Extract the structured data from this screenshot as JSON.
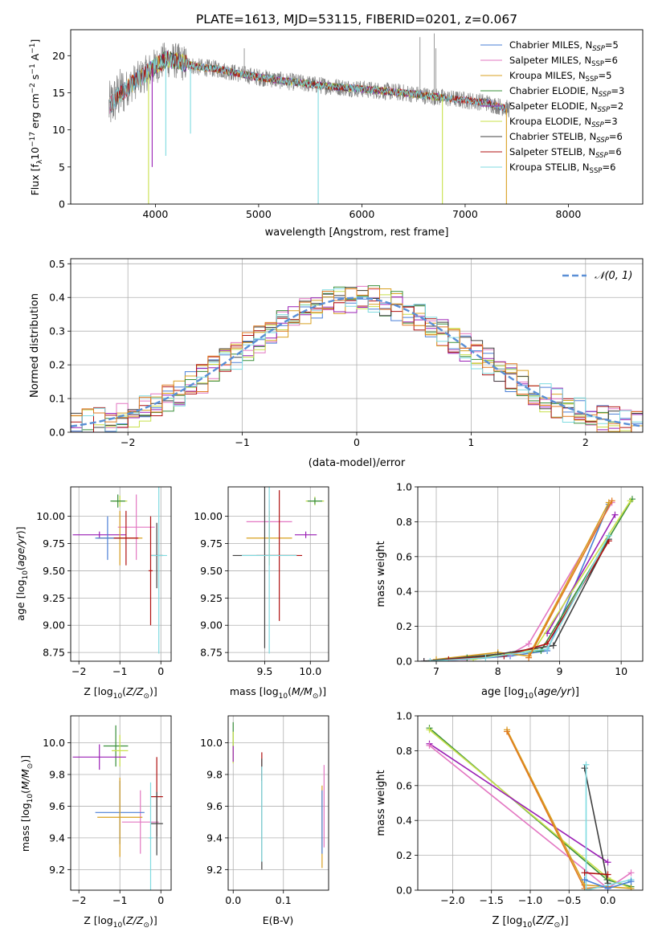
{
  "figure": {
    "title": "PLATE=1613, MJD=53115, FIBERID=0201, z=0.067"
  },
  "colors": {
    "Chabrier MILES": "#4a7fd6",
    "Salpeter MILES": "#e377c2",
    "Kroupa MILES": "#d8a020",
    "Chabrier ELODIE": "#3a8f3a",
    "Salpeter ELODIE": "#9a1fb5",
    "Kroupa ELODIE": "#c8e04a",
    "Chabrier STELIB": "#404040",
    "Salpeter STELIB": "#b01010",
    "Kroupa STELIB": "#7fdbe0",
    "orange": "#e07a20",
    "data": "#808080",
    "normal": "#5a8fd6"
  },
  "chart_data": [
    {
      "id": "spectrum",
      "type": "line",
      "title": "PLATE=1613, MJD=53115, FIBERID=0201, z=0.067",
      "xlabel": "wavelength [Angstrom, rest frame]",
      "ylabel": "Flux [f_λ 10^-17 erg cm^-2 s^-1 A^-1]",
      "xlim": [
        3180,
        8720
      ],
      "ylim": [
        0,
        23.5
      ],
      "xticks": [
        4000,
        5000,
        6000,
        7000,
        8000
      ],
      "yticks": [
        0,
        5,
        10,
        15,
        20
      ],
      "legend_position": "top-right",
      "grid": false,
      "legend": [
        {
          "name": "Chabrier MILES",
          "label": "Chabrier MILES, N_SSP=5"
        },
        {
          "name": "Salpeter MILES",
          "label": "Salpeter MILES, N_SSP=6"
        },
        {
          "name": "Kroupa MILES",
          "label": "Kroupa MILES, N_SSP=5"
        },
        {
          "name": "Chabrier ELODIE",
          "label": "Chabrier ELODIE, N_SSP=3"
        },
        {
          "name": "Salpeter ELODIE",
          "label": "Salpeter ELODIE, N_SSP=2"
        },
        {
          "name": "Kroupa ELODIE",
          "label": "Kroupa ELODIE, N_SSP=3"
        },
        {
          "name": "Chabrier STELIB",
          "label": "Chabrier STELIB, N_SSP=6"
        },
        {
          "name": "Salpeter STELIB",
          "label": "Salpeter STELIB, N_SSP=6"
        },
        {
          "name": "Kroupa STELIB",
          "label": "Kroupa STELIB, N_SSP=6"
        }
      ],
      "continuum_x": [
        3550,
        3650,
        3800,
        3900,
        4000,
        4100,
        4200,
        4400,
        4600,
        4800,
        5000,
        5300,
        5600,
        6000,
        6400,
        6800,
        7200,
        7500,
        7700,
        8000,
        8300,
        8720
      ],
      "continuum_y": [
        13.0,
        14.8,
        16.5,
        17.5,
        18.6,
        19.5,
        19.3,
        18.5,
        18.2,
        17.6,
        17.1,
        16.5,
        16.0,
        15.5,
        15.0,
        14.3,
        13.7,
        12.5,
        11.5,
        11.4,
        11.3,
        11.2
      ],
      "spikes": [
        {
          "x": 3934,
          "y": 0,
          "series": "Kroupa ELODIE"
        },
        {
          "x": 3969,
          "y": 5,
          "series": "Salpeter ELODIE"
        },
        {
          "x": 4101,
          "y": 6.5,
          "series": "Kroupa STELIB"
        },
        {
          "x": 4340,
          "y": 9.5,
          "series": "Kroupa STELIB"
        },
        {
          "x": 5577,
          "y": 0,
          "series": "Kroupa STELIB"
        },
        {
          "x": 6780,
          "y": 0,
          "series": "Kroupa ELODIE"
        },
        {
          "x": 7400,
          "y": 0,
          "series": "Kroupa MILES"
        }
      ]
    },
    {
      "id": "residuals",
      "type": "step",
      "xlabel": "(data-model)/error",
      "ylabel": "Normed distribution",
      "xlim": [
        -2.5,
        2.5
      ],
      "ylim": [
        0,
        0.515
      ],
      "xticks": [
        -2,
        -1,
        0,
        1,
        2
      ],
      "yticks": [
        0.0,
        0.1,
        0.2,
        0.3,
        0.4,
        0.5
      ],
      "grid": true,
      "legend": [
        {
          "label": "𝒩(0, 1)"
        }
      ],
      "bin_width": 0.1
    },
    {
      "id": "age_vs_Z",
      "type": "errorbar",
      "xlabel": "Z [log10(Z/Z⊙)]",
      "ylabel": "age  [log10(age/yr)]",
      "xlim": [
        -2.2,
        0.25
      ],
      "ylim": [
        8.67,
        10.27
      ],
      "xticks": [
        -2,
        -1,
        0
      ],
      "yticks": [
        8.75,
        9.0,
        9.25,
        9.5,
        9.75,
        10.0
      ],
      "grid": true,
      "points": [
        {
          "series": "Kroupa ELODIE",
          "x": -1.0,
          "y": 10.14,
          "dx": 0.18,
          "dy": 0.05
        },
        {
          "series": "Chabrier ELODIE",
          "x": -1.05,
          "y": 10.14,
          "dx": 0.18,
          "dy": 0.06
        },
        {
          "series": "Salpeter ELODIE",
          "x": -1.5,
          "y": 9.83,
          "dx": 0.65,
          "dy": 0.03
        },
        {
          "series": "Salpeter MILES",
          "x": -0.6,
          "y": 9.9,
          "dx": 0.45,
          "dy": 0.3
        },
        {
          "series": "Kroupa MILES",
          "x": -1.0,
          "y": 9.8,
          "dx": 0.55,
          "dy": 0.25
        },
        {
          "series": "Chabrier MILES",
          "x": -1.3,
          "y": 9.8,
          "dx": 0.3,
          "dy": 0.2
        },
        {
          "series": "Salpeter STELIB",
          "x": -0.85,
          "y": 9.8,
          "dx": 0.3,
          "dy": 0.25
        },
        {
          "series": "Chabrier STELIB",
          "x": -0.1,
          "y": 9.64,
          "dx": 0.15,
          "dy": 0.3
        },
        {
          "series": "Kroupa STELIB",
          "x": -0.05,
          "y": 9.64,
          "dx": 0.2,
          "dy": 0.9
        },
        {
          "series": "Salpeter STELIB",
          "x": -0.25,
          "y": 9.5,
          "dx": 0.05,
          "dy": 0.5
        }
      ]
    },
    {
      "id": "age_vs_mass",
      "type": "errorbar",
      "xlabel": "mass [log10(M/M⊙)]",
      "ylabel": "",
      "xlim": [
        9.1,
        10.2
      ],
      "ylim": [
        8.67,
        10.27
      ],
      "xticks": [
        9.5,
        10.0
      ],
      "yticks": [
        8.75,
        9.0,
        9.25,
        9.5,
        9.75,
        10.0
      ],
      "grid": true,
      "points": [
        {
          "series": "Kroupa ELODIE",
          "x": 10.05,
          "y": 10.14,
          "dx": 0.1,
          "dy": 0.04
        },
        {
          "series": "Chabrier ELODIE",
          "x": 10.05,
          "y": 10.14,
          "dx": 0.08,
          "dy": 0.03
        },
        {
          "series": "Salpeter MILES",
          "x": 9.55,
          "y": 9.95,
          "dx": 0.25,
          "dy": 0.2
        },
        {
          "series": "Salpeter ELODIE",
          "x": 9.95,
          "y": 9.83,
          "dx": 0.12,
          "dy": 0.03
        },
        {
          "series": "Kroupa MILES",
          "x": 9.55,
          "y": 9.8,
          "dx": 0.25,
          "dy": 0.25
        },
        {
          "series": "Chabrier STELIB",
          "x": 9.5,
          "y": 9.64,
          "dx": 0.35,
          "dy": 0.85
        },
        {
          "series": "Salpeter STELIB",
          "x": 9.66,
          "y": 9.64,
          "dx": 0.25,
          "dy": 0.6
        },
        {
          "series": "Kroupa STELIB",
          "x": 9.55,
          "y": 9.64,
          "dx": 0.3,
          "dy": 0.9
        }
      ]
    },
    {
      "id": "mass_weight_vs_age",
      "type": "line",
      "xlabel": "age  [log10(age/yr)]",
      "ylabel": "mass weight",
      "xlim": [
        6.7,
        10.35
      ],
      "ylim": [
        0,
        1.0
      ],
      "xticks": [
        7,
        8,
        9,
        10
      ],
      "yticks": [
        0.0,
        0.2,
        0.4,
        0.6,
        0.8,
        1.0
      ],
      "grid": true,
      "series": [
        {
          "name": "Chabrier MILES",
          "x": [
            6.8,
            7.5,
            8.2,
            8.8,
            9.8
          ],
          "y": [
            0.0,
            0.01,
            0.03,
            0.06,
            0.9
          ]
        },
        {
          "name": "Salpeter MILES",
          "x": [
            6.8,
            7.5,
            8.2,
            8.5,
            9.85
          ],
          "y": [
            0.0,
            0.01,
            0.04,
            0.1,
            0.91
          ]
        },
        {
          "name": "Kroupa MILES",
          "x": [
            7.0,
            8.0,
            8.5,
            9.8
          ],
          "y": [
            0.01,
            0.05,
            0.03,
            0.91
          ]
        },
        {
          "name": "Chabrier ELODIE",
          "x": [
            7.5,
            8.7,
            10.18
          ],
          "y": [
            0.02,
            0.06,
            0.93
          ]
        },
        {
          "name": "Salpeter ELODIE",
          "x": [
            8.8,
            9.9
          ],
          "y": [
            0.16,
            0.84
          ]
        },
        {
          "name": "Kroupa ELODIE",
          "x": [
            7.6,
            8.6,
            10.15
          ],
          "y": [
            0.01,
            0.07,
            0.92
          ]
        },
        {
          "name": "Chabrier STELIB",
          "x": [
            6.8,
            8.0,
            8.9,
            9.8
          ],
          "y": [
            0.0,
            0.04,
            0.09,
            0.7
          ]
        },
        {
          "name": "Salpeter STELIB",
          "x": [
            7.2,
            8.1,
            8.8,
            9.8
          ],
          "y": [
            0.01,
            0.03,
            0.1,
            0.69
          ]
        },
        {
          "name": "Kroupa STELIB",
          "x": [
            6.9,
            7.8,
            8.8,
            9.8
          ],
          "y": [
            0.0,
            0.02,
            0.07,
            0.72
          ]
        },
        {
          "name": "orange",
          "x": [
            8.5,
            9.85
          ],
          "y": [
            0.02,
            0.92
          ]
        }
      ]
    },
    {
      "id": "mass_vs_Z",
      "type": "errorbar",
      "xlabel": "Z [log10(Z/Z⊙)]",
      "ylabel": "mass [log10(M/M⊙)]",
      "xlim": [
        -2.2,
        0.25
      ],
      "ylim": [
        9.07,
        10.17
      ],
      "xticks": [
        -2,
        -1,
        0
      ],
      "yticks": [
        9.2,
        9.4,
        9.6,
        9.8,
        10.0
      ],
      "grid": true,
      "points": [
        {
          "series": "Chabrier ELODIE",
          "x": -1.1,
          "y": 9.98,
          "dx": 0.3,
          "dy": 0.13
        },
        {
          "series": "Kroupa ELODIE",
          "x": -1.0,
          "y": 9.95,
          "dx": 0.2,
          "dy": 0.1
        },
        {
          "series": "Salpeter ELODIE",
          "x": -1.5,
          "y": 9.91,
          "dx": 0.65,
          "dy": 0.08
        },
        {
          "series": "Salpeter MILES",
          "x": -0.5,
          "y": 9.5,
          "dx": 0.45,
          "dy": 0.2
        },
        {
          "series": "Chabrier MILES",
          "x": -1.0,
          "y": 9.56,
          "dx": 0.6,
          "dy": 0.2
        },
        {
          "series": "Kroupa MILES",
          "x": -1.0,
          "y": 9.53,
          "dx": 0.55,
          "dy": 0.25
        },
        {
          "series": "Salpeter STELIB",
          "x": -0.1,
          "y": 9.66,
          "dx": 0.15,
          "dy": 0.25
        },
        {
          "series": "Chabrier STELIB",
          "x": -0.1,
          "y": 9.49,
          "dx": 0.15,
          "dy": 0.2
        },
        {
          "series": "Kroupa STELIB",
          "x": -0.25,
          "y": 9.4,
          "dx": 0.05,
          "dy": 0.35
        }
      ]
    },
    {
      "id": "mass_vs_EBV",
      "type": "errorbar",
      "xlabel": "E(B-V)",
      "ylabel": "",
      "xlim": [
        -0.01,
        0.19
      ],
      "ylim": [
        9.07,
        10.17
      ],
      "xticks": [
        0.0,
        0.1
      ],
      "yticks": [
        9.2,
        9.4,
        9.6,
        9.8,
        10.0
      ],
      "grid": true,
      "points": [
        {
          "series": "Chabrier ELODIE",
          "x": 0.0,
          "y": 10.05,
          "dx": 0,
          "dy": 0.08
        },
        {
          "series": "Kroupa ELODIE",
          "x": 0.0,
          "y": 9.97,
          "dx": 0,
          "dy": 0.1
        },
        {
          "series": "Salpeter ELODIE",
          "x": 0.0,
          "y": 9.93,
          "dx": 0,
          "dy": 0.05
        },
        {
          "series": "Salpeter STELIB",
          "x": 0.057,
          "y": 9.85,
          "dx": 0,
          "dy": 0.09
        },
        {
          "series": "Chabrier STELIB",
          "x": 0.057,
          "y": 9.55,
          "dx": 0,
          "dy": 0.35
        },
        {
          "series": "Kroupa STELIB",
          "x": 0.057,
          "y": 9.55,
          "dx": 0,
          "dy": 0.3
        },
        {
          "series": "Salpeter MILES",
          "x": 0.181,
          "y": 9.6,
          "dx": 0,
          "dy": 0.26
        },
        {
          "series": "Kroupa MILES",
          "x": 0.177,
          "y": 9.47,
          "dx": 0,
          "dy": 0.26
        },
        {
          "series": "Chabrier MILES",
          "x": 0.177,
          "y": 9.5,
          "dx": 0,
          "dy": 0.2
        }
      ]
    },
    {
      "id": "mass_weight_vs_Z",
      "type": "line",
      "xlabel": "Z [log10(Z/Z⊙)]",
      "ylabel": "mass weight",
      "xlim": [
        -2.45,
        0.45
      ],
      "ylim": [
        0,
        1.0
      ],
      "xticks": [
        -2.0,
        -1.5,
        -1.0,
        -0.5,
        0.0
      ],
      "yticks": [
        0.0,
        0.2,
        0.4,
        0.6,
        0.8,
        1.0
      ],
      "grid": true,
      "series": [
        {
          "name": "Chabrier ELODIE",
          "x": [
            -2.3,
            -0.01,
            0.3
          ],
          "y": [
            0.93,
            0.06,
            0.02
          ]
        },
        {
          "name": "Kroupa ELODIE",
          "x": [
            -2.3,
            0.0,
            0.3
          ],
          "y": [
            0.92,
            0.07,
            0.01
          ]
        },
        {
          "name": "Salpeter ELODIE",
          "x": [
            -2.3,
            0.0
          ],
          "y": [
            0.84,
            0.16
          ]
        },
        {
          "name": "Salpeter MILES",
          "x": [
            -2.3,
            0.0,
            0.3
          ],
          "y": [
            0.83,
            0.01,
            0.1
          ]
        },
        {
          "name": "Kroupa MILES",
          "x": [
            -1.3,
            -0.3,
            0.3
          ],
          "y": [
            0.92,
            0.03,
            0.01
          ]
        },
        {
          "name": "orange",
          "x": [
            -1.3,
            -0.3,
            0.0
          ],
          "y": [
            0.91,
            0.01,
            0.02
          ]
        },
        {
          "name": "Chabrier STELIB",
          "x": [
            -0.3,
            0.0
          ],
          "y": [
            0.7,
            0.04
          ]
        },
        {
          "name": "Kroupa STELIB",
          "x": [
            -0.28,
            -0.28,
            0.3
          ],
          "y": [
            0.72,
            0.0,
            0.06
          ]
        },
        {
          "name": "Salpeter STELIB",
          "x": [
            -0.3,
            0.0
          ],
          "y": [
            0.1,
            0.09
          ]
        },
        {
          "name": "Chabrier MILES",
          "x": [
            -0.3,
            0.0,
            0.3
          ],
          "y": [
            0.06,
            0.01,
            0.05
          ]
        }
      ]
    }
  ]
}
